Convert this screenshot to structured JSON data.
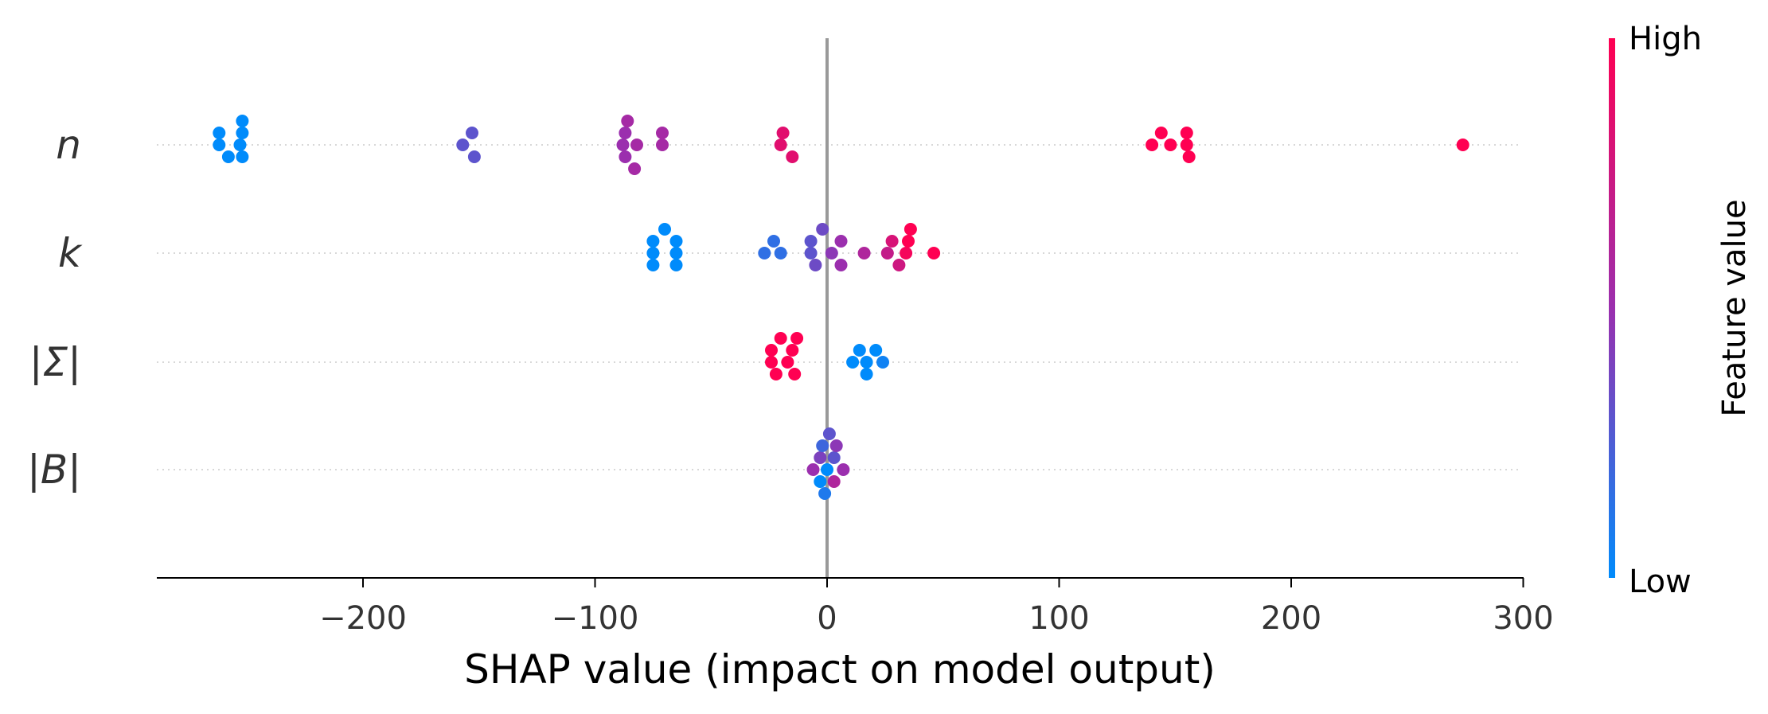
{
  "chart_data": {
    "type": "scatter",
    "subtype": "shap-beeswarm",
    "xlabel": "SHAP value (impact on model output)",
    "xlim": [
      -290,
      300
    ],
    "xticks": [
      -200,
      -100,
      0,
      100,
      200,
      300
    ],
    "xtick_labels": [
      "−200",
      "−100",
      "0",
      "100",
      "200",
      "300"
    ],
    "colorbar": {
      "title": "Feature value",
      "high_label": "High",
      "low_label": "Low",
      "low_color": "#008bfb",
      "mid_color": "#9b2fae",
      "high_color": "#ff0052"
    },
    "colors": {
      "zero_line": "#999999",
      "guide_line": "#cccccc",
      "axis": "#000000"
    },
    "features": [
      {
        "name": "n",
        "label": "n",
        "points": [
          {
            "x": -262,
            "v": 0.0
          },
          {
            "x": -262,
            "v": 0.0
          },
          {
            "x": -258,
            "v": 0.0
          },
          {
            "x": -253,
            "v": 0.0
          },
          {
            "x": -252,
            "v": 0.0
          },
          {
            "x": -252,
            "v": 0.0
          },
          {
            "x": -252,
            "v": 0.0
          },
          {
            "x": -157,
            "v": 0.3
          },
          {
            "x": -153,
            "v": 0.3
          },
          {
            "x": -152,
            "v": 0.3
          },
          {
            "x": -86,
            "v": 0.55
          },
          {
            "x": -87,
            "v": 0.5
          },
          {
            "x": -88,
            "v": 0.5
          },
          {
            "x": -87,
            "v": 0.5
          },
          {
            "x": -82,
            "v": 0.55
          },
          {
            "x": -83,
            "v": 0.55
          },
          {
            "x": -71,
            "v": 0.55
          },
          {
            "x": -71,
            "v": 0.55
          },
          {
            "x": -20,
            "v": 0.85
          },
          {
            "x": -15,
            "v": 0.85
          },
          {
            "x": -19,
            "v": 0.85
          },
          {
            "x": 140,
            "v": 1.0
          },
          {
            "x": 144,
            "v": 1.0
          },
          {
            "x": 148,
            "v": 1.0
          },
          {
            "x": 155,
            "v": 1.0
          },
          {
            "x": 155,
            "v": 1.0
          },
          {
            "x": 156,
            "v": 1.0
          },
          {
            "x": 274,
            "v": 1.0
          }
        ]
      },
      {
        "name": "k",
        "label": "k",
        "points": [
          {
            "x": -75,
            "v": 0.0
          },
          {
            "x": -75,
            "v": 0.0
          },
          {
            "x": -75,
            "v": 0.0
          },
          {
            "x": -65,
            "v": 0.0
          },
          {
            "x": -65,
            "v": 0.0
          },
          {
            "x": -65,
            "v": 0.0
          },
          {
            "x": -70,
            "v": 0.0
          },
          {
            "x": -27,
            "v": 0.15
          },
          {
            "x": -23,
            "v": 0.15
          },
          {
            "x": -20,
            "v": 0.15
          },
          {
            "x": -7,
            "v": 0.3
          },
          {
            "x": -5,
            "v": 0.35
          },
          {
            "x": -7,
            "v": 0.3
          },
          {
            "x": -2,
            "v": 0.35
          },
          {
            "x": 2,
            "v": 0.45
          },
          {
            "x": 6,
            "v": 0.5
          },
          {
            "x": 6,
            "v": 0.5
          },
          {
            "x": 16,
            "v": 0.6
          },
          {
            "x": 26,
            "v": 0.7
          },
          {
            "x": 28,
            "v": 0.8
          },
          {
            "x": 31,
            "v": 0.75
          },
          {
            "x": 34,
            "v": 0.95
          },
          {
            "x": 36,
            "v": 1.0
          },
          {
            "x": 35,
            "v": 1.0
          },
          {
            "x": 46,
            "v": 1.0
          }
        ]
      },
      {
        "name": "sigma-det",
        "label": "|Σ|",
        "points": [
          {
            "x": -24,
            "v": 1.0
          },
          {
            "x": -22,
            "v": 1.0
          },
          {
            "x": -15,
            "v": 1.0
          },
          {
            "x": -13,
            "v": 1.0
          },
          {
            "x": -24,
            "v": 1.0
          },
          {
            "x": -20,
            "v": 1.0
          },
          {
            "x": -17,
            "v": 1.0
          },
          {
            "x": -14,
            "v": 1.0
          },
          {
            "x": 11,
            "v": 0.0
          },
          {
            "x": 14,
            "v": 0.0
          },
          {
            "x": 17,
            "v": 0.0
          },
          {
            "x": 21,
            "v": 0.0
          },
          {
            "x": 24,
            "v": 0.05
          },
          {
            "x": 17,
            "v": 0.0
          }
        ]
      },
      {
        "name": "b-det",
        "label": "|B|",
        "points": [
          {
            "x": -3,
            "v": 0.4
          },
          {
            "x": 1,
            "v": 0.3
          },
          {
            "x": 4,
            "v": 0.45
          },
          {
            "x": -6,
            "v": 0.5
          },
          {
            "x": -2,
            "v": 0.2
          },
          {
            "x": 0,
            "v": 0.0
          },
          {
            "x": 3,
            "v": 0.3
          },
          {
            "x": 7,
            "v": 0.5
          },
          {
            "x": -3,
            "v": 0.0
          },
          {
            "x": 3,
            "v": 0.6
          },
          {
            "x": -1,
            "v": 0.1
          }
        ]
      }
    ]
  }
}
